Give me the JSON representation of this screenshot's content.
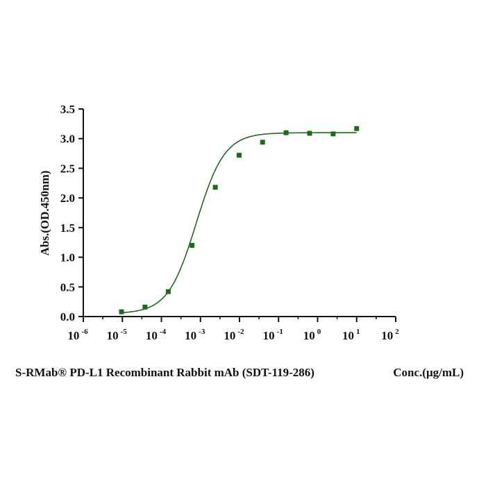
{
  "chart_data": {
    "type": "scatter",
    "title": "",
    "ylabel": "Abs.(OD.450nm)",
    "xlabel": "Conc.(μg/mL)",
    "caption": "S-RMab® PD-L1 Recombinant Rabbit mAb (SDT-119-286)",
    "x_scale": "log",
    "xlim": [
      1e-06,
      100
    ],
    "ylim": [
      0,
      3.5
    ],
    "grid": false,
    "legend": "none",
    "x_ticks": [
      {
        "base": "10",
        "exp": "-6",
        "value": 1e-06
      },
      {
        "base": "10",
        "exp": "-5",
        "value": 1e-05
      },
      {
        "base": "10",
        "exp": "-4",
        "value": 0.0001
      },
      {
        "base": "10",
        "exp": "-3",
        "value": 0.001
      },
      {
        "base": "10",
        "exp": "-2",
        "value": 0.01
      },
      {
        "base": "10",
        "exp": "-1",
        "value": 0.1
      },
      {
        "base": "10",
        "exp": "0",
        "value": 1
      },
      {
        "base": "10",
        "exp": "1",
        "value": 10
      },
      {
        "base": "10",
        "exp": "2",
        "value": 100
      }
    ],
    "y_ticks": [
      "0.0",
      "0.5",
      "1.0",
      "1.5",
      "2.0",
      "2.5",
      "3.0",
      "3.5"
    ],
    "series": [
      {
        "color": "#1b6b1b",
        "marker": "square",
        "points": [
          {
            "x": 9.5e-06,
            "y": 0.08
          },
          {
            "x": 3.8e-05,
            "y": 0.16
          },
          {
            "x": 0.00015,
            "y": 0.42
          },
          {
            "x": 0.00061,
            "y": 1.2
          },
          {
            "x": 0.0024,
            "y": 2.18
          },
          {
            "x": 0.0098,
            "y": 2.72
          },
          {
            "x": 0.039,
            "y": 2.94
          },
          {
            "x": 0.156,
            "y": 3.1
          },
          {
            "x": 0.625,
            "y": 3.09
          },
          {
            "x": 2.5,
            "y": 3.08
          },
          {
            "x": 10,
            "y": 3.17
          }
        ],
        "fit": {
          "model": "4PL",
          "bottom": 0.05,
          "top": 3.1,
          "ec50": 0.00078,
          "hill": 1.2,
          "x_range": [
            9.5e-06,
            10
          ]
        }
      }
    ]
  }
}
